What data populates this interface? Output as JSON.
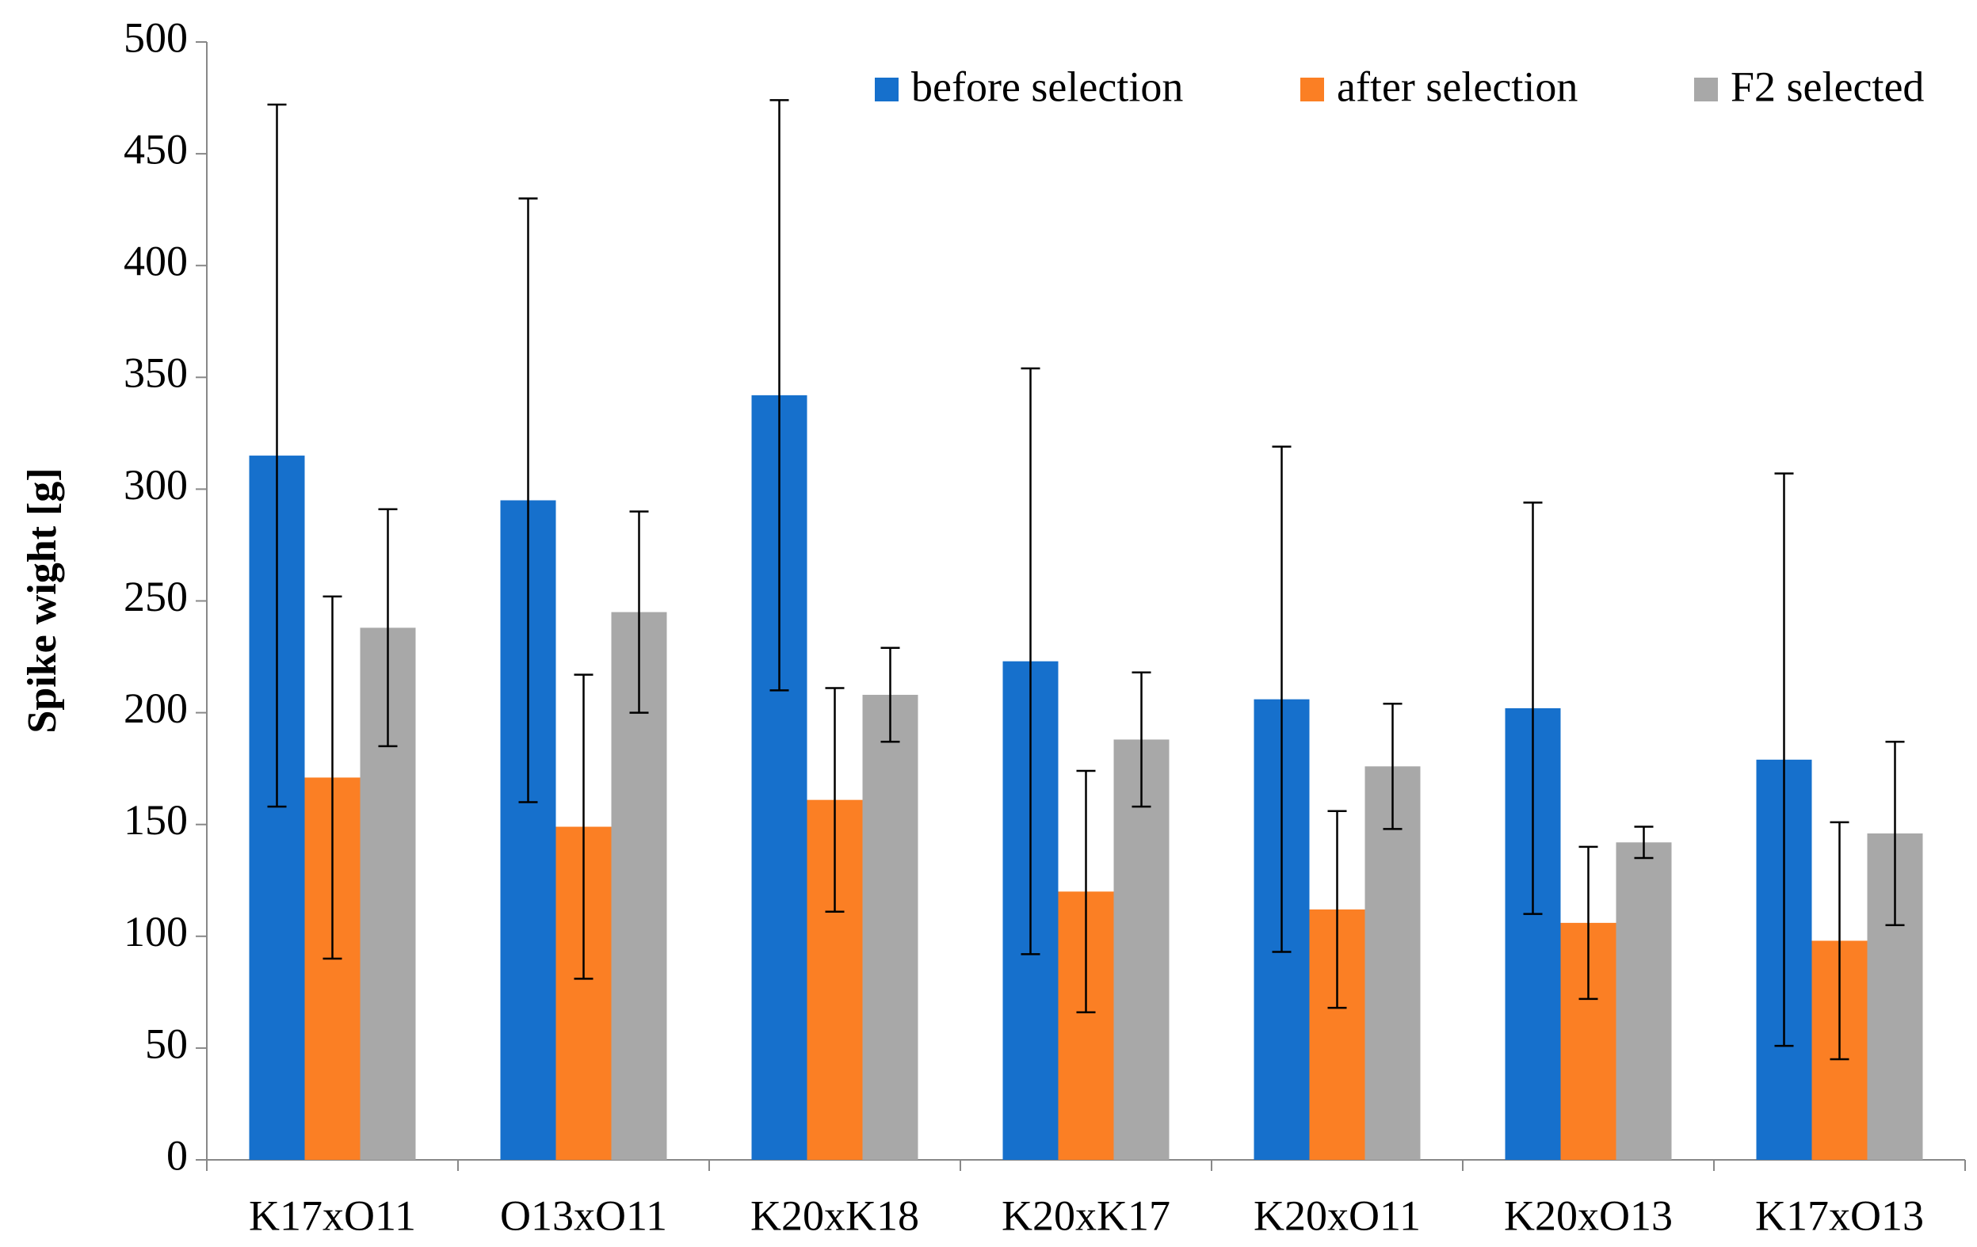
{
  "chart_data": {
    "type": "bar",
    "y_label": "Spike wight [g]",
    "categories": [
      "K17xO11",
      "O13xO11",
      "K20xK18",
      "K20xK17",
      "K20xO11",
      "K20xO13",
      "K17xO13"
    ],
    "series": [
      {
        "name": "before selection",
        "color": "#1670cc",
        "values": [
          315,
          295,
          342,
          223,
          206,
          202,
          179
        ],
        "errors": [
          157,
          135,
          132,
          131,
          113,
          92,
          128
        ]
      },
      {
        "name": "after selection",
        "color": "#fb7f24",
        "values": [
          171,
          149,
          161,
          120,
          112,
          106,
          98
        ],
        "errors": [
          81,
          68,
          50,
          54,
          44,
          34,
          53
        ]
      },
      {
        "name": "F2 selected",
        "color": "#a8a8a8",
        "values": [
          238,
          245,
          208,
          188,
          176,
          142,
          146
        ],
        "errors": [
          53,
          45,
          21,
          30,
          28,
          7,
          41
        ]
      }
    ],
    "ylim": [
      0,
      500
    ],
    "yticks": [
      0,
      50,
      100,
      150,
      200,
      250,
      300,
      350,
      400,
      450,
      500
    ],
    "legend": "upper right"
  }
}
